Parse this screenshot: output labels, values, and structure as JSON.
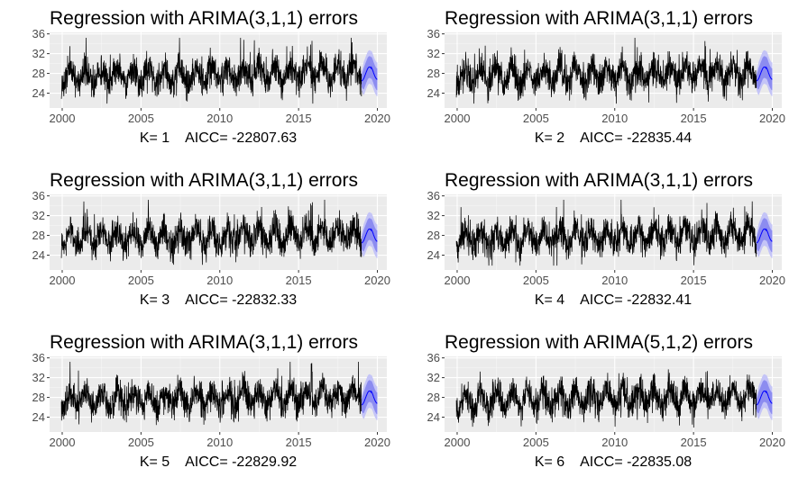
{
  "chart_data": [
    {
      "type": "line",
      "title": "Regression with ARIMA(3,1,1) errors",
      "xlabel": "K= 1    AICC= -22807.63",
      "xticks": [
        "2000",
        "2005",
        "2010",
        "2015",
        "2020"
      ],
      "yticks": [
        "24",
        "28",
        "32",
        "36"
      ],
      "xlim": [
        1999.2,
        2020.6
      ],
      "ylim": [
        21.0,
        36.3
      ],
      "grid": true,
      "series": [
        {
          "values_summary": "daily series ~2000-2019, range 22-35, seasonal",
          "color": "#000000"
        },
        {
          "values_summary": "forecast ~2019-2020 with 80/95% intervals",
          "color": "#0000ff"
        }
      ]
    },
    {
      "type": "line",
      "title": "Regression with ARIMA(3,1,1) errors",
      "xlabel": "K= 2    AICC= -22835.44",
      "xticks": [
        "2000",
        "2005",
        "2010",
        "2015",
        "2020"
      ],
      "yticks": [
        "24",
        "28",
        "32",
        "36"
      ],
      "xlim": [
        1999.2,
        2020.6
      ],
      "ylim": [
        21.0,
        36.3
      ],
      "grid": true,
      "series": [
        {
          "values_summary": "daily series ~2000-2019, range 22-35, seasonal",
          "color": "#000000"
        },
        {
          "values_summary": "forecast ~2019-2020 with 80/95% intervals",
          "color": "#0000ff"
        }
      ]
    },
    {
      "type": "line",
      "title": "Regression with ARIMA(3,1,1) errors",
      "xlabel": "K= 3    AICC= -22832.33",
      "xticks": [
        "2000",
        "2005",
        "2010",
        "2015",
        "2020"
      ],
      "yticks": [
        "24",
        "28",
        "32",
        "36"
      ],
      "xlim": [
        1999.2,
        2020.6
      ],
      "ylim": [
        21.0,
        36.3
      ],
      "grid": true,
      "series": [
        {
          "values_summary": "daily series ~2000-2019, range 22-35, seasonal",
          "color": "#000000"
        },
        {
          "values_summary": "forecast ~2019-2020 with 80/95% intervals",
          "color": "#0000ff"
        }
      ]
    },
    {
      "type": "line",
      "title": "Regression with ARIMA(3,1,1) errors",
      "xlabel": "K= 4    AICC= -22832.41",
      "xticks": [
        "2000",
        "2005",
        "2010",
        "2015",
        "2020"
      ],
      "yticks": [
        "24",
        "28",
        "32",
        "36"
      ],
      "xlim": [
        1999.2,
        2020.6
      ],
      "ylim": [
        21.0,
        36.3
      ],
      "grid": true,
      "series": [
        {
          "values_summary": "daily series ~2000-2019, range 22-35, seasonal",
          "color": "#000000"
        },
        {
          "values_summary": "forecast ~2019-2020 with 80/95% intervals",
          "color": "#0000ff"
        }
      ]
    },
    {
      "type": "line",
      "title": "Regression with ARIMA(3,1,1) errors",
      "xlabel": "K= 5    AICC= -22829.92",
      "xticks": [
        "2000",
        "2005",
        "2010",
        "2015",
        "2020"
      ],
      "yticks": [
        "24",
        "28",
        "32",
        "36"
      ],
      "xlim": [
        1999.2,
        2020.6
      ],
      "ylim": [
        21.0,
        36.3
      ],
      "grid": true,
      "series": [
        {
          "values_summary": "daily series ~2000-2019, range 22-35, seasonal",
          "color": "#000000"
        },
        {
          "values_summary": "forecast ~2019-2020 with 80/95% intervals",
          "color": "#0000ff"
        }
      ]
    },
    {
      "type": "line",
      "title": "Regression with ARIMA(5,1,2) errors",
      "xlabel": "K= 6    AICC= -22835.08",
      "xticks": [
        "2000",
        "2005",
        "2010",
        "2015",
        "2020"
      ],
      "yticks": [
        "24",
        "28",
        "32",
        "36"
      ],
      "xlim": [
        1999.2,
        2020.6
      ],
      "ylim": [
        21.0,
        36.3
      ],
      "grid": true,
      "series": [
        {
          "values_summary": "daily series ~2000-2019, range 22-35, seasonal",
          "color": "#000000"
        },
        {
          "values_summary": "forecast ~2019-2020 with 80/95% intervals",
          "color": "#0000ff"
        }
      ]
    }
  ],
  "colors": {
    "panel_background": "#ebebeb",
    "grid_major": "#ffffff",
    "series_line": "#000000",
    "forecast_line": "#0000ff",
    "interval_80": "#8c8cf0",
    "interval_95": "#c4c4f7"
  }
}
